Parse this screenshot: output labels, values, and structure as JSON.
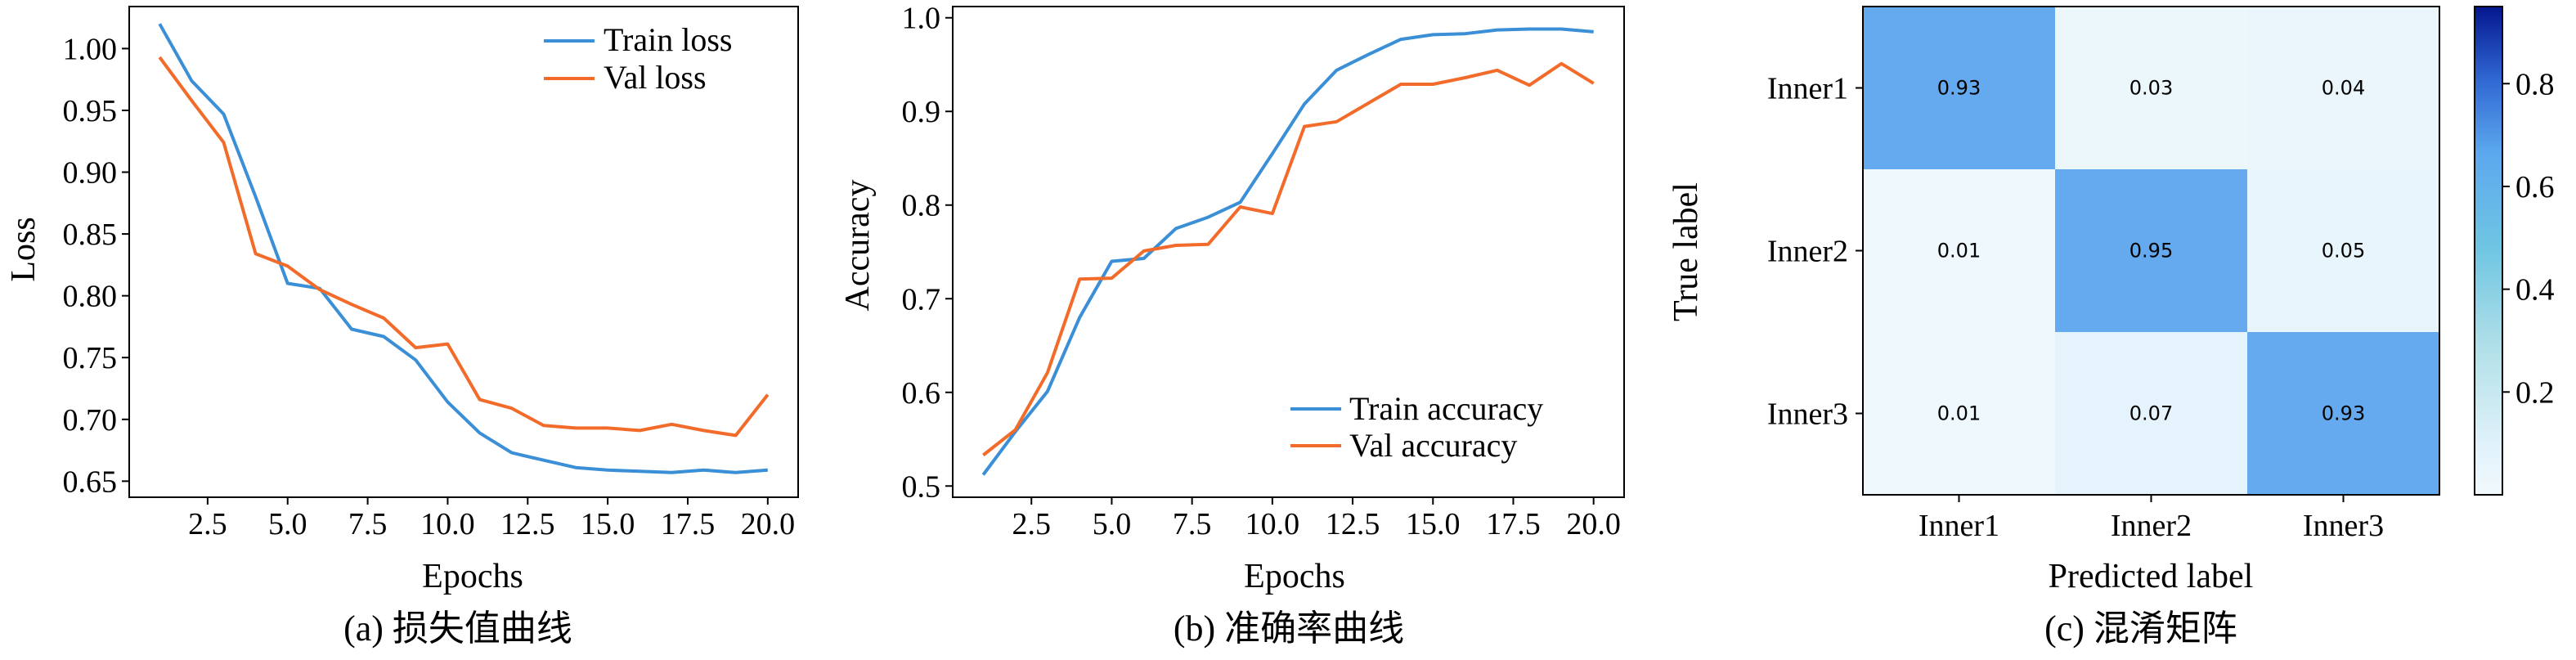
{
  "colors": {
    "train": "#3a8fd6",
    "val": "#f26b2a",
    "cmap_low": "#f1f9fd",
    "cmap_high": "#04168e"
  },
  "chart_data": [
    {
      "type": "line",
      "caption": "(a) 损失值曲线",
      "xlabel": "Epochs",
      "ylabel": "Loss",
      "x": [
        1,
        2,
        3,
        4,
        5,
        6,
        7,
        8,
        9,
        10,
        11,
        12,
        13,
        14,
        15,
        16,
        17,
        18,
        19,
        20
      ],
      "xlim": [
        0.05,
        20.95
      ],
      "ylim": [
        0.637,
        1.034
      ],
      "xticks": [
        2.5,
        5.0,
        7.5,
        10.0,
        12.5,
        15.0,
        17.5,
        20.0
      ],
      "xtick_labels": [
        "2.5",
        "5.0",
        "7.5",
        "10.0",
        "12.5",
        "15.0",
        "17.5",
        "20.0"
      ],
      "yticks": [
        0.65,
        0.7,
        0.75,
        0.8,
        0.85,
        0.9,
        0.95,
        1.0
      ],
      "ytick_labels": [
        "0.65",
        "0.70",
        "0.75",
        "0.80",
        "0.85",
        "0.90",
        "0.95",
        "1.00"
      ],
      "legend_position": "top-right",
      "series": [
        {
          "name": "Train loss",
          "color_key": "train",
          "values": [
            1.02,
            0.974,
            0.947,
            0.88,
            0.81,
            0.806,
            0.773,
            0.767,
            0.748,
            0.714,
            0.689,
            0.673,
            0.667,
            0.661,
            0.659,
            0.658,
            0.657,
            0.659,
            0.657,
            0.659
          ]
        },
        {
          "name": "Val loss",
          "color_key": "val",
          "values": [
            0.993,
            0.958,
            0.924,
            0.834,
            0.824,
            0.805,
            0.793,
            0.782,
            0.758,
            0.761,
            0.716,
            0.709,
            0.695,
            0.693,
            0.693,
            0.691,
            0.696,
            0.691,
            0.687,
            0.72
          ]
        }
      ]
    },
    {
      "type": "line",
      "caption": "(b) 准确率曲线",
      "xlabel": "Epochs",
      "ylabel": "Accuracy",
      "x": [
        1,
        2,
        3,
        4,
        5,
        6,
        7,
        8,
        9,
        10,
        11,
        12,
        13,
        14,
        15,
        16,
        17,
        18,
        19,
        20
      ],
      "xlim": [
        0.05,
        20.95
      ],
      "ylim": [
        0.488,
        1.012
      ],
      "xticks": [
        2.5,
        5.0,
        7.5,
        10.0,
        12.5,
        15.0,
        17.5,
        20.0
      ],
      "xtick_labels": [
        "2.5",
        "5.0",
        "7.5",
        "10.0",
        "12.5",
        "15.0",
        "17.5",
        "20.0"
      ],
      "yticks": [
        0.5,
        0.6,
        0.7,
        0.8,
        0.9,
        1.0
      ],
      "ytick_labels": [
        "0.5",
        "0.6",
        "0.7",
        "0.8",
        "0.9",
        "1.0"
      ],
      "legend_position": "bottom-right",
      "series": [
        {
          "name": "Train accuracy",
          "color_key": "train",
          "values": [
            0.512,
            0.558,
            0.601,
            0.68,
            0.74,
            0.743,
            0.775,
            0.787,
            0.803,
            0.855,
            0.908,
            0.944,
            0.961,
            0.977,
            0.982,
            0.983,
            0.987,
            0.988,
            0.988,
            0.985
          ]
        },
        {
          "name": "Val accuracy",
          "color_key": "val",
          "values": [
            0.533,
            0.56,
            0.621,
            0.721,
            0.722,
            0.751,
            0.757,
            0.758,
            0.798,
            0.791,
            0.884,
            0.889,
            0.909,
            0.929,
            0.929,
            0.936,
            0.944,
            0.928,
            0.951,
            0.93
          ]
        }
      ]
    },
    {
      "type": "heatmap",
      "caption": "(c) 混淆矩阵",
      "xlabel": "Predicted label",
      "ylabel": "True label",
      "x_categories": [
        "Inner1",
        "Inner2",
        "Inner3"
      ],
      "y_categories": [
        "Inner1",
        "Inner2",
        "Inner3"
      ],
      "values": [
        [
          0.93,
          0.03,
          0.04
        ],
        [
          0.01,
          0.95,
          0.05
        ],
        [
          0.01,
          0.07,
          0.93
        ]
      ],
      "cell_labels": [
        [
          "0.93",
          "0.03",
          "0.04"
        ],
        [
          "0.01",
          "0.95",
          "0.05"
        ],
        [
          "0.01",
          "0.07",
          "0.93"
        ]
      ],
      "colorbar_range": [
        0,
        0.95
      ],
      "colorbar_ticks": [
        0.2,
        0.4,
        0.6,
        0.8
      ],
      "colorbar_tick_labels": [
        "0.2",
        "0.4",
        "0.6",
        "0.8"
      ]
    }
  ]
}
